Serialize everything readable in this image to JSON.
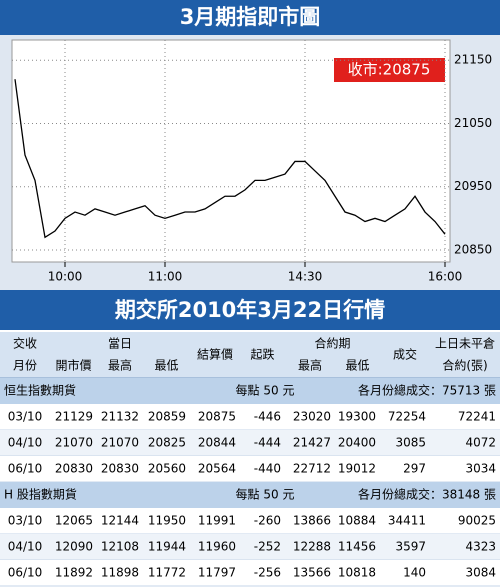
{
  "chart_data": {
    "type": "line",
    "title": "3月期指即市圖",
    "annotation": "收市:20875",
    "color": "#000000",
    "categories": [
      null,
      null,
      null,
      null,
      null,
      "10:00",
      null,
      null,
      null,
      null,
      null,
      null,
      null,
      null,
      null,
      "11:00",
      null,
      null,
      null,
      null,
      null,
      null,
      null,
      null,
      null,
      null,
      null,
      null,
      null,
      "14:30",
      null,
      null,
      null,
      null,
      null,
      null,
      null,
      null,
      null,
      null,
      null,
      null,
      null,
      "16:00"
    ],
    "values": [
      21120,
      21000,
      20960,
      20870,
      20880,
      20900,
      20910,
      20905,
      20915,
      20910,
      20905,
      20910,
      20915,
      20920,
      20905,
      20900,
      20905,
      20910,
      20910,
      20915,
      20925,
      20935,
      20935,
      20945,
      20960,
      20960,
      20965,
      20970,
      20990,
      20990,
      20975,
      20960,
      20935,
      20910,
      20905,
      20895,
      20900,
      20895,
      20905,
      20915,
      20935,
      20910,
      20895,
      20875
    ],
    "ylim": [
      20831,
      21182
    ],
    "yticks": [
      20850,
      20950,
      21050,
      21150
    ],
    "grid": true
  },
  "table": {
    "title": "期交所2010年3月22日行情",
    "header_top": [
      "交收",
      "當日",
      "結算價",
      "起跌",
      "合約期",
      "成交",
      "上日未平倉"
    ],
    "header_bottom": [
      "月份",
      "開市價",
      "最高",
      "最低",
      "最高",
      "最低",
      "合約(張)"
    ],
    "sections": [
      {
        "title": "恒生指數期貨",
        "unit": "每點 50 元",
        "total": "各月份總成交：75713 張",
        "rows": [
          [
            "03/10",
            21129,
            21132,
            20859,
            20875,
            -446,
            23020,
            19300,
            72254,
            72241
          ],
          [
            "04/10",
            21070,
            21070,
            20825,
            20844,
            -444,
            21427,
            20400,
            3085,
            4072
          ],
          [
            "06/10",
            20830,
            20830,
            20560,
            20564,
            -440,
            22712,
            19012,
            297,
            3034
          ]
        ]
      },
      {
        "title": "H 股指數期貨",
        "unit": "每點 50 元",
        "total": "各月份總成交：38148 張",
        "rows": [
          [
            "03/10",
            12065,
            12144,
            11950,
            11991,
            -260,
            13866,
            10884,
            34411,
            90025
          ],
          [
            "04/10",
            12090,
            12108,
            11944,
            11960,
            -252,
            12288,
            11456,
            3597,
            4323
          ],
          [
            "06/10",
            11892,
            11898,
            11772,
            11797,
            -256,
            13566,
            10818,
            140,
            3084
          ]
        ]
      }
    ]
  }
}
